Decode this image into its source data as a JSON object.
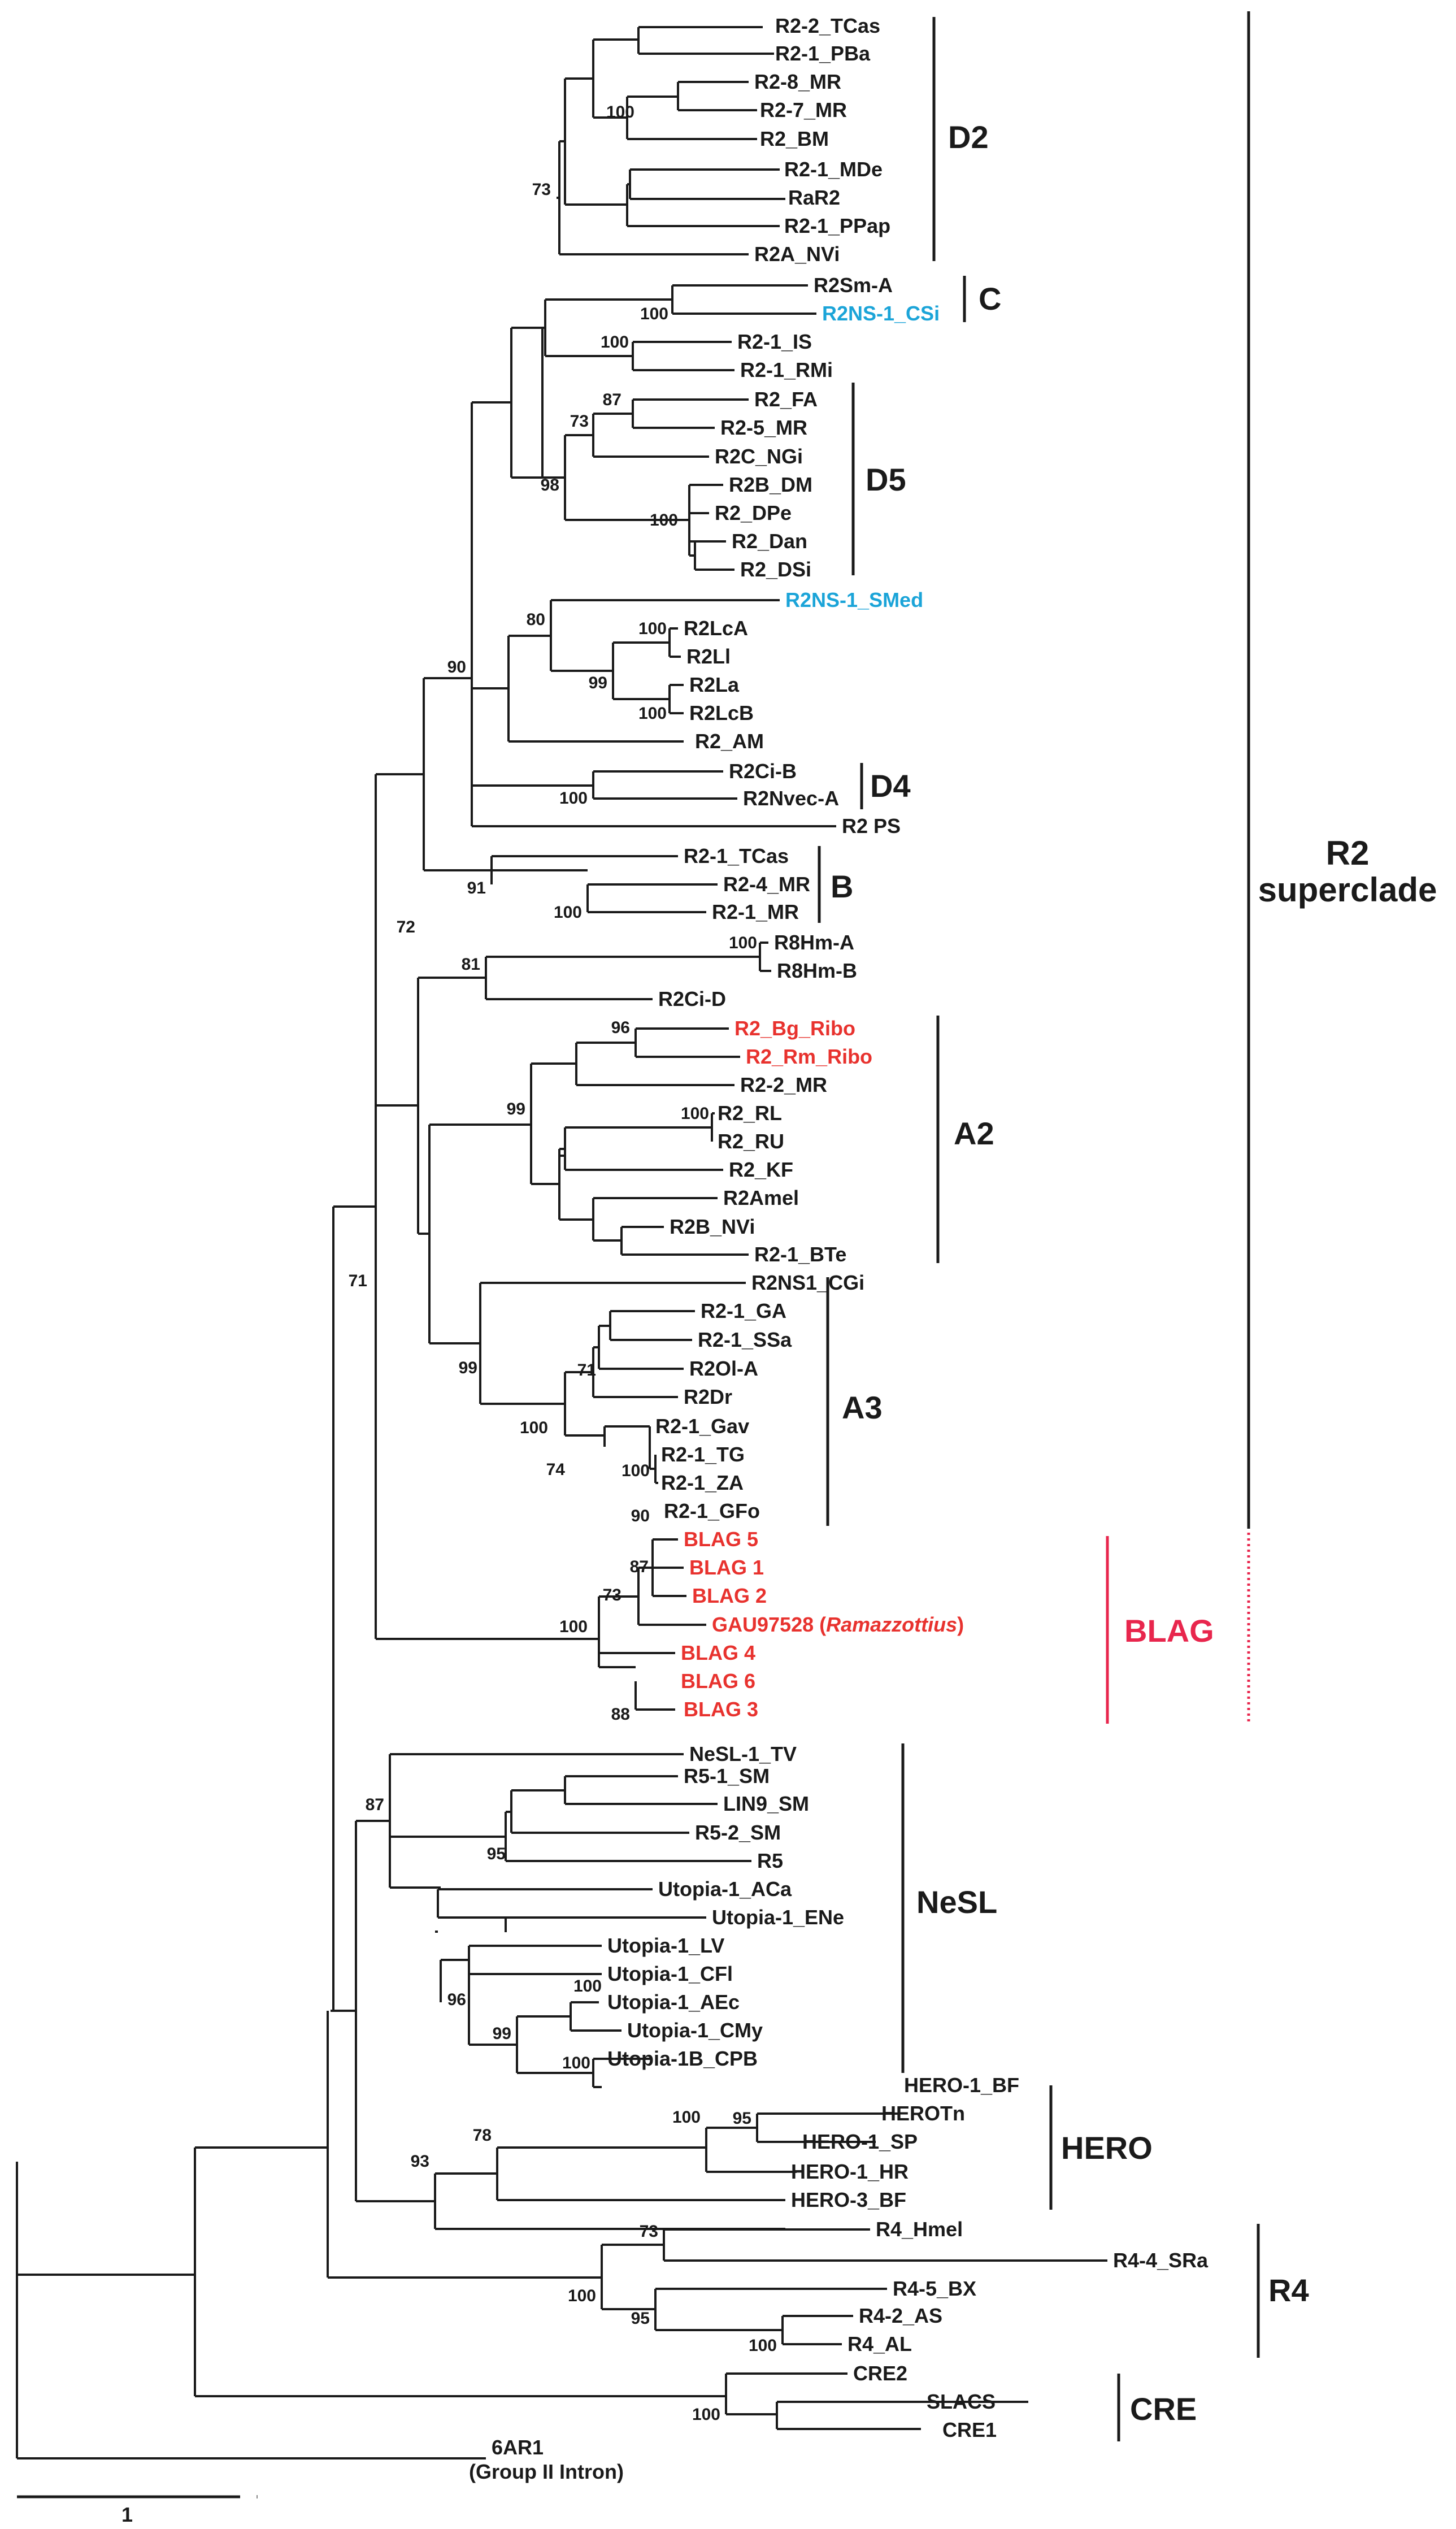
{
  "leaves": {
    "R2-2_TCas": "R2-2_TCas",
    "R2-1_PBa": "R2-1_PBa",
    "R2-8_MR": "R2-8_MR",
    "R2-7_MR": "R2-7_MR",
    "R2_BM": "R2_BM",
    "R2-1_MDe": "R2-1_MDe",
    "RaR2": "RaR2",
    "R2-1_PPap": "R2-1_PPap",
    "R2A_NVi": "R2A_NVi",
    "R2Sm-A": "R2Sm-A",
    "R2NS-1_CSi": "R2NS-1_CSi",
    "R2-1_IS": "R2-1_IS",
    "R2-1_RMi": "R2-1_RMi",
    "R2_FA": "R2_FA",
    "R2-5_MR": "R2-5_MR",
    "R2C_NGi": "R2C_NGi",
    "R2B_DM": "R2B_DM",
    "R2_DPe": "R2_DPe",
    "R2_Dan": "R2_Dan",
    "R2_DSi": "R2_DSi",
    "R2NS-1_SMed": "R2NS-1_SMed",
    "R2LcA": "R2LcA",
    "R2Ll": "R2Ll",
    "R2La": "R2La",
    "R2LcB": "R2LcB",
    "R2_AM": "R2_AM",
    "R2Ci-B": "R2Ci-B",
    "R2Nvec-A": "R2Nvec-A",
    "R2 PS": "R2 PS",
    "R2-1_TCas": "R2-1_TCas",
    "R2-4_MR": "R2-4_MR",
    "R2-1_MR": "R2-1_MR",
    "R8Hm-A": "R8Hm-A",
    "R8Hm-B": "R8Hm-B",
    "R2Ci-D": "R2Ci-D",
    "R2_Bg_Ribo": "R2_Bg_Ribo",
    "R2_Rm_Ribo": "R2_Rm_Ribo",
    "R2-2_MR": "R2-2_MR",
    "R2_RL": "R2_RL",
    "R2_RU": "R2_RU",
    "R2_KF": "R2_KF",
    "R2Amel": "R2Amel",
    "R2B_NVi": "R2B_NVi",
    "R2-1_BTe": "R2-1_BTe",
    "R2NS1_CGi": "R2NS1_CGi",
    "R2-1_GA": "R2-1_GA",
    "R2-1_SSa": "R2-1_SSa",
    "R2Ol-A": "R2Ol-A",
    "R2Dr": "R2Dr",
    "R2-1_Gav": "R2-1_Gav",
    "R2-1_TG": "R2-1_TG",
    "R2-1_ZA": "R2-1_ZA",
    "R2-1_GFo": "R2-1_GFo",
    "BLAG 5": "BLAG 5",
    "BLAG 1": "BLAG 1",
    "BLAG 2": "BLAG 2",
    "GAU97528": "GAU97528 (",
    "GAU97528_italic": "Ramazzottius",
    "GAU97528_close": ")",
    "BLAG 4": "BLAG 4",
    "BLAG 6": "BLAG 6",
    "BLAG 3": "BLAG 3",
    "NeSL-1_TV": "NeSL-1_TV",
    "R5-1_SM": "R5-1_SM",
    "LIN9_SM": "LIN9_SM",
    "R5-2_SM": "R5-2_SM",
    "R5": "R5",
    "Utopia-1_ACa": "Utopia-1_ACa",
    "Utopia-1_ENe": "Utopia-1_ENe",
    "Utopia-1_LV": "Utopia-1_LV",
    "Utopia-1_CFl": "Utopia-1_CFl",
    "Utopia-1_AEc": "Utopia-1_AEc",
    "Utopia-1_CMy": "Utopia-1_CMy",
    "Utopia-1B_CPB": "Utopia-1B_CPB",
    "HERO-1_BF": "HERO-1_BF",
    "HEROTn": "HEROTn",
    "HERO-1_SP": "HERO-1_SP",
    "HERO-1_HR": "HERO-1_HR",
    "HERO-3_BF": "HERO-3_BF",
    "R4_Hmel": "R4_Hmel",
    "R4-4_SRa": "R4-4_SRa",
    "R4-5_BX": "R4-5_BX",
    "R4-2_AS": "R4-2_AS",
    "R4_AL": "R4_AL",
    "CRE2": "CRE2",
    "SLACS": "SLACS",
    "CRE1": "CRE1",
    "6AR1": "6AR1",
    "6AR1_sub": "(Group II Intron)"
  },
  "bootstrap": {
    "b100_r28": "100",
    "b73_d2": "73",
    "b100_c": "100",
    "b100_is": "100",
    "b87_d5": "87",
    "b73_d5": "73",
    "b98_d5": "98",
    "b100_dpe": "100",
    "b80": "80",
    "b100_lca": "100",
    "b99_la": "99",
    "b100_lcb": "100",
    "b90": "90",
    "b100_d4": "100",
    "b91": "91",
    "b100_b": "100",
    "b72": "72",
    "b81": "81",
    "b100_r8": "100",
    "b96": "96",
    "b99_a2": "99",
    "b100_rl": "100",
    "b71_a": "71",
    "b99_a3": "99",
    "b71_ol": "71",
    "b100_a3": "100",
    "b74": "74",
    "b100_tg": "100",
    "b90_gfo": "90",
    "b87_blag": "87",
    "b73_blag": "73",
    "b100_blag": "100",
    "b88": "88",
    "b87_nesl": "87",
    "b95_r5": "95",
    "b96_ut": "96",
    "b100_cfl": "100",
    "b99_ut": "99",
    "b100_cmy": "100",
    "b100_hero": "100",
    "b95_hero": "95",
    "b78": "78",
    "b93": "93",
    "b73_r4": "73",
    "b100_r4": "100",
    "b95_r4": "95",
    "b100_al": "100",
    "b100_cre": "100"
  },
  "clades": {
    "D2": "D2",
    "C": "C",
    "D5": "D5",
    "D4": "D4",
    "B": "B",
    "A2": "A2",
    "A3": "A3",
    "BLAG": "BLAG",
    "NeSL": "NeSL",
    "HERO": "HERO",
    "R4": "R4",
    "CRE": "CRE",
    "R2_line1": "R2",
    "R2_line2": "superclade"
  },
  "scale": {
    "label": "1"
  },
  "colors": {
    "red": "#e8322e",
    "blue": "#1ba4d8",
    "blag": "#e8264d"
  }
}
